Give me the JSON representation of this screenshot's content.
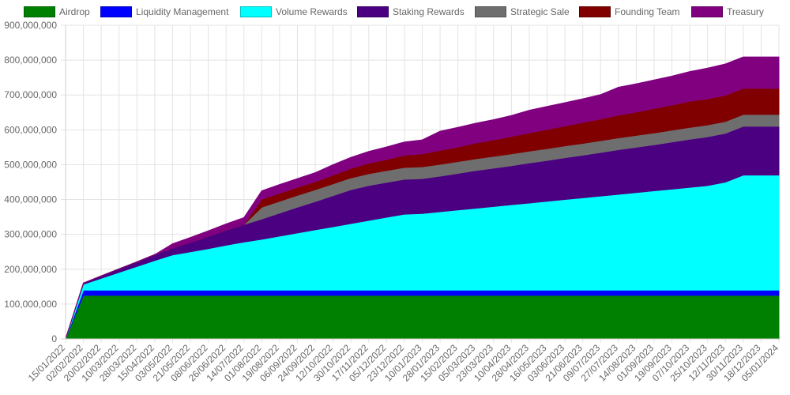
{
  "chart_data": {
    "type": "area",
    "stacked": true,
    "title": "",
    "xlabel": "",
    "ylabel": "",
    "ylim": [
      0,
      900000000
    ],
    "y_ticks": [
      0,
      100000000,
      200000000,
      300000000,
      400000000,
      500000000,
      600000000,
      700000000,
      800000000,
      900000000
    ],
    "y_tick_labels": [
      "0",
      "100,000,000",
      "200,000,000",
      "300,000,000",
      "400,000,000",
      "500,000,000",
      "600,000,000",
      "700,000,000",
      "800,000,000",
      "900,000,000"
    ],
    "grid": true,
    "legend_position": "top",
    "categories": [
      "15/01/2022",
      "02/02/2022",
      "20/02/2022",
      "10/03/2022",
      "28/03/2022",
      "15/04/2022",
      "03/05/2022",
      "21/05/2022",
      "08/06/2022",
      "26/06/2022",
      "14/07/2022",
      "01/08/2022",
      "19/08/2022",
      "06/09/2022",
      "24/09/2022",
      "12/10/2022",
      "30/10/2022",
      "17/11/2022",
      "05/12/2022",
      "23/12/2022",
      "10/01/2023",
      "28/01/2023",
      "15/02/2023",
      "05/03/2023",
      "23/03/2023",
      "10/04/2023",
      "28/04/2023",
      "16/05/2023",
      "03/06/2023",
      "21/06/2023",
      "09/07/2023",
      "27/07/2023",
      "14/08/2023",
      "01/09/2023",
      "19/09/2023",
      "07/10/2023",
      "25/10/2023",
      "12/11/2023",
      "30/11/2023",
      "18/12/2023",
      "05/01/2024"
    ],
    "series": [
      {
        "name": "Airdrop",
        "color": "#008000",
        "values": [
          0,
          125000000,
          125000000,
          125000000,
          125000000,
          125000000,
          125000000,
          125000000,
          125000000,
          125000000,
          125000000,
          125000000,
          125000000,
          125000000,
          125000000,
          125000000,
          125000000,
          125000000,
          125000000,
          125000000,
          125000000,
          125000000,
          125000000,
          125000000,
          125000000,
          125000000,
          125000000,
          125000000,
          125000000,
          125000000,
          125000000,
          125000000,
          125000000,
          125000000,
          125000000,
          125000000,
          125000000,
          125000000,
          125000000,
          125000000,
          125000000
        ]
      },
      {
        "name": "Liquidity Management",
        "color": "#0000ff",
        "values": [
          0,
          15000000,
          15000000,
          15000000,
          15000000,
          15000000,
          15000000,
          15000000,
          15000000,
          15000000,
          15000000,
          15000000,
          15000000,
          15000000,
          15000000,
          15000000,
          15000000,
          15000000,
          15000000,
          15000000,
          15000000,
          15000000,
          15000000,
          15000000,
          15000000,
          15000000,
          15000000,
          15000000,
          15000000,
          15000000,
          15000000,
          15000000,
          15000000,
          15000000,
          15000000,
          15000000,
          15000000,
          15000000,
          15000000,
          15000000,
          15000000
        ]
      },
      {
        "name": "Volume Rewards",
        "color": "#00ffff",
        "values": [
          0,
          17000000,
          34000000,
          51000000,
          68000000,
          85000000,
          101000000,
          110000000,
          119000000,
          129000000,
          138000000,
          146000000,
          155000000,
          164000000,
          173000000,
          182000000,
          191000000,
          200000000,
          209000000,
          218000000,
          220000000,
          225000000,
          230000000,
          235000000,
          240000000,
          245000000,
          250000000,
          255000000,
          260000000,
          265000000,
          270000000,
          275000000,
          280000000,
          285000000,
          290000000,
          295000000,
          300000000,
          310000000,
          330000000,
          330000000,
          330000000
        ]
      },
      {
        "name": "Staking Rewards",
        "color": "#4b0082",
        "values": [
          0,
          3000000,
          7000000,
          10000000,
          13000000,
          17000000,
          20000000,
          27000000,
          35000000,
          43000000,
          50000000,
          58000000,
          66000000,
          74000000,
          81000000,
          89000000,
          97000000,
          100000000,
          100000000,
          100000000,
          100000000,
          102000000,
          105000000,
          108000000,
          110000000,
          112000000,
          115000000,
          117000000,
          120000000,
          122000000,
          125000000,
          128000000,
          130000000,
          132000000,
          135000000,
          138000000,
          140000000,
          140000000,
          140000000,
          140000000,
          140000000
        ]
      },
      {
        "name": "Strategic Sale",
        "color": "#6e6e6e",
        "values": [
          0,
          0,
          0,
          0,
          0,
          0,
          0,
          0,
          0,
          0,
          0,
          34000000,
          34000000,
          34000000,
          34000000,
          34000000,
          34000000,
          34000000,
          34000000,
          34000000,
          34000000,
          34000000,
          34000000,
          34000000,
          34000000,
          34000000,
          34000000,
          34000000,
          34000000,
          34000000,
          34000000,
          34000000,
          34000000,
          34000000,
          34000000,
          34000000,
          34000000,
          34000000,
          34000000,
          34000000,
          34000000
        ]
      },
      {
        "name": "Founding Team",
        "color": "#800000",
        "values": [
          0,
          0,
          0,
          0,
          0,
          0,
          0,
          0,
          0,
          0,
          0,
          23000000,
          23000000,
          23000000,
          23000000,
          25000000,
          27000000,
          30000000,
          32000000,
          35000000,
          37000000,
          40000000,
          42000000,
          45000000,
          47000000,
          50000000,
          52000000,
          55000000,
          57000000,
          60000000,
          62000000,
          65000000,
          67000000,
          70000000,
          72000000,
          75000000,
          75000000,
          75000000,
          75000000,
          75000000,
          75000000
        ]
      },
      {
        "name": "Treasury",
        "color": "#800080",
        "values": [
          0,
          0,
          0,
          0,
          0,
          0,
          12000000,
          14000000,
          16000000,
          18000000,
          20000000,
          24000000,
          25000000,
          25000000,
          26000000,
          30000000,
          32000000,
          34000000,
          36000000,
          38000000,
          40000000,
          55000000,
          56000000,
          57000000,
          58000000,
          60000000,
          65000000,
          66000000,
          67000000,
          68000000,
          70000000,
          80000000,
          81000000,
          82000000,
          83000000,
          85000000,
          88000000,
          90000000,
          90000000,
          90000000,
          90000000
        ]
      }
    ]
  }
}
